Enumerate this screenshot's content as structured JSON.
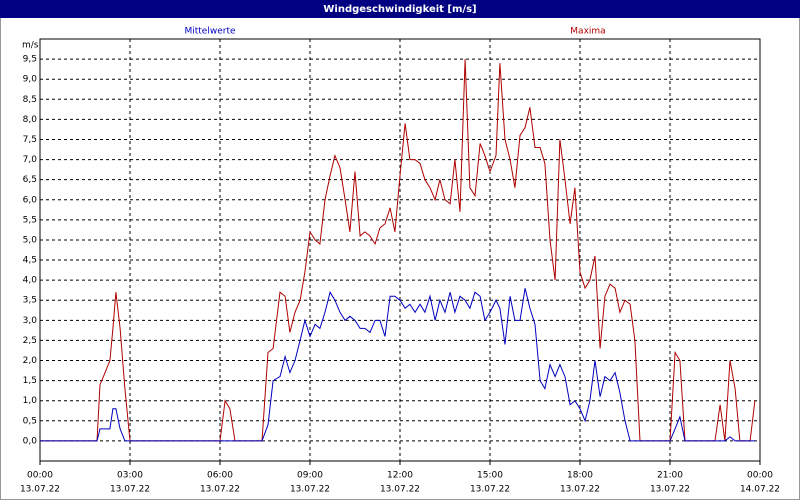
{
  "chart_data": {
    "type": "line",
    "title": "Windgeschwindigkeit [m/s]",
    "y_unit": "m/s",
    "x": [
      0,
      1.9,
      2,
      2.17,
      2.33,
      2.43,
      2.53,
      2.67,
      2.83,
      3,
      6,
      6.17,
      6.33,
      6.5,
      7.4,
      7.6,
      7.77,
      8,
      8.17,
      8.33,
      8.5,
      8.67,
      8.83,
      9,
      9.17,
      9.33,
      9.5,
      9.67,
      9.83,
      10,
      10.17,
      10.33,
      10.5,
      10.67,
      10.83,
      11,
      11.17,
      11.33,
      11.5,
      11.67,
      11.83,
      12,
      12.17,
      12.33,
      12.5,
      12.67,
      12.83,
      13,
      13.17,
      13.33,
      13.5,
      13.67,
      13.83,
      14,
      14.17,
      14.33,
      14.5,
      14.67,
      14.83,
      15,
      15.2,
      15.33,
      15.5,
      15.67,
      15.83,
      16,
      16.17,
      16.33,
      16.5,
      16.67,
      16.83,
      17,
      17.17,
      17.33,
      17.5,
      17.67,
      17.83,
      18,
      18.17,
      18.33,
      18.5,
      18.67,
      18.83,
      19,
      19.17,
      19.33,
      19.5,
      19.67,
      19.83,
      20,
      21,
      21.17,
      21.33,
      21.5,
      22.5,
      22.67,
      22.83,
      23,
      23.17,
      23.33,
      23.67,
      23.83
    ],
    "series": [
      {
        "name": "Maxima",
        "color": "#b00000",
        "values": [
          0,
          0,
          1.4,
          1.7,
          2.0,
          2.8,
          3.7,
          2.8,
          1.3,
          0,
          0,
          1.0,
          0.8,
          0,
          0,
          2.2,
          2.3,
          3.7,
          3.6,
          2.7,
          3.2,
          3.5,
          4.2,
          5.2,
          5.0,
          4.9,
          6.0,
          6.6,
          7.1,
          6.8,
          6.0,
          5.2,
          6.7,
          5.1,
          5.2,
          5.1,
          4.9,
          5.3,
          5.4,
          5.8,
          5.2,
          6.6,
          7.9,
          7.0,
          7.0,
          6.9,
          6.5,
          6.3,
          6.0,
          6.5,
          6.0,
          5.9,
          7.0,
          5.7,
          9.5,
          6.3,
          6.1,
          7.4,
          7.1,
          6.7,
          7.1,
          9.4,
          7.5,
          7.0,
          6.3,
          7.6,
          7.8,
          8.3,
          7.3,
          7.3,
          6.9,
          5.0,
          4.0,
          7.5,
          6.5,
          5.4,
          6.3,
          4.2,
          3.8,
          4.0,
          4.6,
          2.3,
          3.6,
          3.9,
          3.8,
          3.2,
          3.5,
          3.4,
          2.5,
          0,
          0,
          2.2,
          2.0,
          0,
          0,
          0.9,
          0,
          2.0,
          1.3,
          0,
          0,
          1.0
        ]
      },
      {
        "name": "Mittelwerte",
        "color": "#0000c0",
        "values": [
          0,
          0,
          0.3,
          0.3,
          0.3,
          0.8,
          0.8,
          0.3,
          0,
          0,
          0,
          0,
          0,
          0,
          0,
          0.4,
          1.5,
          1.6,
          2.1,
          1.7,
          2.0,
          2.5,
          3.0,
          2.6,
          2.9,
          2.8,
          3.2,
          3.7,
          3.5,
          3.2,
          3.0,
          3.1,
          3.0,
          2.8,
          2.8,
          2.7,
          3.0,
          3.0,
          2.6,
          3.6,
          3.6,
          3.5,
          3.3,
          3.4,
          3.2,
          3.4,
          3.2,
          3.6,
          3.0,
          3.5,
          3.2,
          3.7,
          3.2,
          3.6,
          3.5,
          3.3,
          3.7,
          3.6,
          3.0,
          3.2,
          3.5,
          3.3,
          2.4,
          3.6,
          3.0,
          3.0,
          3.8,
          3.3,
          2.9,
          1.5,
          1.3,
          1.9,
          1.6,
          1.9,
          1.6,
          0.9,
          1.0,
          0.8,
          0.5,
          1.0,
          2.0,
          1.1,
          1.6,
          1.5,
          1.7,
          1.2,
          0.5,
          0,
          0,
          0,
          0,
          0.3,
          0.6,
          0,
          0,
          0,
          0,
          0.1,
          0,
          0,
          0,
          0
        ]
      }
    ],
    "xlim": [
      0,
      24
    ],
    "xticks": [
      {
        "value": 0,
        "label": "00:00"
      },
      {
        "value": 3,
        "label": "03:00"
      },
      {
        "value": 6,
        "label": "06:00"
      },
      {
        "value": 9,
        "label": "09:00"
      },
      {
        "value": 12,
        "label": "12:00"
      },
      {
        "value": 15,
        "label": "15:00"
      },
      {
        "value": 18,
        "label": "18:00"
      },
      {
        "value": 21,
        "label": "21:00"
      },
      {
        "value": 24,
        "label": "00:00"
      }
    ],
    "xtick_dates": [
      "13.07.22",
      "13.07.22",
      "13.07.22",
      "13.07.22",
      "13.07.22",
      "13.07.22",
      "13.07.22",
      "13.07.22",
      "14.07.22"
    ],
    "ylim": [
      -0.5,
      10
    ],
    "yticks": [
      {
        "value": 0,
        "label": "0,0"
      },
      {
        "value": 0.5,
        "label": "0,5"
      },
      {
        "value": 1,
        "label": "1,0"
      },
      {
        "value": 1.5,
        "label": "1,5"
      },
      {
        "value": 2,
        "label": "2,0"
      },
      {
        "value": 2.5,
        "label": "2,5"
      },
      {
        "value": 3,
        "label": "3,0"
      },
      {
        "value": 3.5,
        "label": "3,5"
      },
      {
        "value": 4,
        "label": "4,0"
      },
      {
        "value": 4.5,
        "label": "4,5"
      },
      {
        "value": 5,
        "label": "5,0"
      },
      {
        "value": 5.5,
        "label": "5,5"
      },
      {
        "value": 6,
        "label": "6,0"
      },
      {
        "value": 6.5,
        "label": "6,5"
      },
      {
        "value": 7,
        "label": "7,0"
      },
      {
        "value": 7.5,
        "label": "7,5"
      },
      {
        "value": 8,
        "label": "8,0"
      },
      {
        "value": 8.5,
        "label": "8,5"
      },
      {
        "value": 9,
        "label": "9,0"
      },
      {
        "value": 9.5,
        "label": "9,5"
      }
    ],
    "grid": true
  }
}
